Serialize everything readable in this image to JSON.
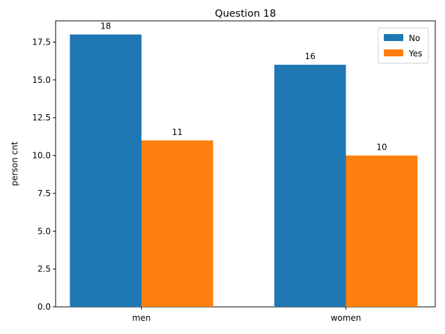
{
  "chart_data": {
    "type": "bar",
    "title": "Question 18",
    "xlabel": "",
    "ylabel": "person cnt",
    "categories": [
      "men",
      "women"
    ],
    "series": [
      {
        "name": "No",
        "values": [
          18,
          16
        ],
        "color": "#1f77b4"
      },
      {
        "name": "Yes",
        "values": [
          11,
          10
        ],
        "color": "#ff7f0e"
      }
    ],
    "ylim": [
      0,
      18.9
    ],
    "yticks": [
      "0.0",
      "2.5",
      "5.0",
      "7.5",
      "10.0",
      "12.5",
      "15.0",
      "17.5"
    ],
    "legend_position": "top-right",
    "grid": false
  }
}
